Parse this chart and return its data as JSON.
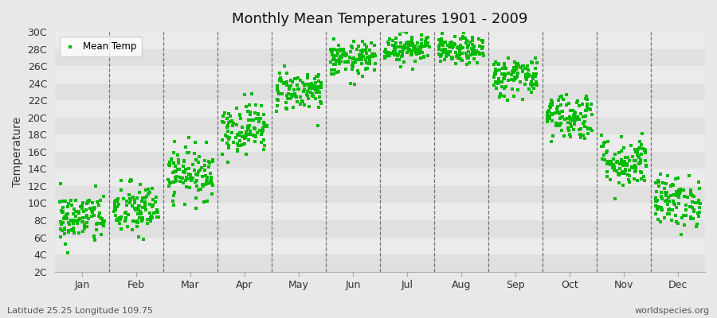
{
  "title": "Monthly Mean Temperatures 1901 - 2009",
  "ylabel": "Temperature",
  "subtitle_left": "Latitude 25.25 Longitude 109.75",
  "subtitle_right": "worldspecies.org",
  "legend_label": "Mean Temp",
  "dot_color": "#00bb00",
  "bg_color": "#e8e8e8",
  "plot_bg_color": "#e8e8e8",
  "band_colors": [
    "#e0e0e0",
    "#ebebeb"
  ],
  "ylim": [
    2,
    30
  ],
  "yticks": [
    2,
    4,
    6,
    8,
    10,
    12,
    14,
    16,
    18,
    20,
    22,
    24,
    26,
    28,
    30
  ],
  "ytick_labels": [
    "2C",
    "4C",
    "6C",
    "8C",
    "10C",
    "12C",
    "14C",
    "16C",
    "18C",
    "20C",
    "22C",
    "24C",
    "26C",
    "28C",
    "30C"
  ],
  "month_names": [
    "Jan",
    "Feb",
    "Mar",
    "Apr",
    "May",
    "Jun",
    "Jul",
    "Aug",
    "Sep",
    "Oct",
    "Nov",
    "Dec"
  ],
  "monthly_means": [
    8.2,
    9.2,
    13.5,
    18.8,
    23.2,
    26.8,
    28.2,
    27.8,
    24.8,
    20.2,
    14.8,
    10.2
  ],
  "monthly_stds": [
    1.5,
    1.6,
    1.5,
    1.5,
    1.2,
    1.0,
    0.9,
    0.8,
    1.2,
    1.4,
    1.5,
    1.5
  ],
  "n_years": 109,
  "seed": 42,
  "marker_size": 5,
  "dpi": 100,
  "fig_width": 9.0,
  "fig_height": 4.0
}
